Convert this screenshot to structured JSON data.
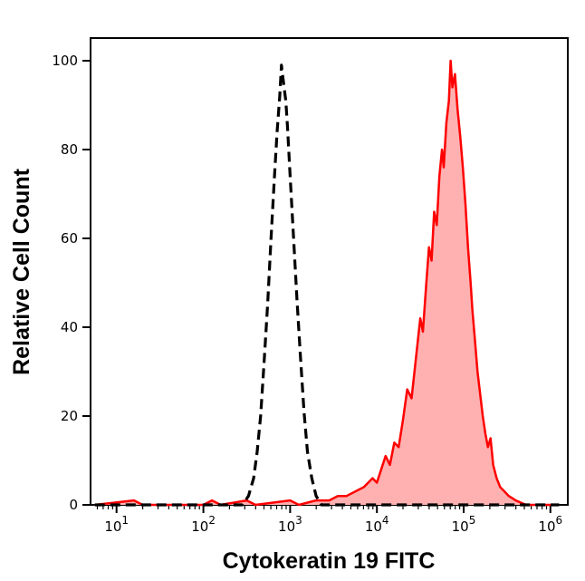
{
  "figure": {
    "background": "#ffffff",
    "frame_color": "#000000"
  },
  "chart_data": {
    "type": "area",
    "subtype": "flow-cytometry-histogram-overlay",
    "title": "",
    "xlabel": "Cytokeratin 19 FITC",
    "ylabel": "Relative Cell Count",
    "x_scale": "log10",
    "x_range": [
      10,
      1000000
    ],
    "ylim": [
      0,
      100
    ],
    "grid": false,
    "legend": "none",
    "x_ticks": [
      {
        "base": "10",
        "exp": "1"
      },
      {
        "base": "10",
        "exp": "2"
      },
      {
        "base": "10",
        "exp": "3"
      },
      {
        "base": "10",
        "exp": "4"
      },
      {
        "base": "10",
        "exp": "5"
      },
      {
        "base": "10",
        "exp": "6"
      }
    ],
    "y_tick_labels": [
      "0",
      "20",
      "40",
      "60",
      "80",
      "100"
    ],
    "y_tick_values": [
      0,
      20,
      40,
      60,
      80,
      100
    ],
    "series": [
      {
        "name": "red-filled-curve",
        "line_style": "solid",
        "color": "#ff0000",
        "fill": "#ffb1b1",
        "stroke_width": 2.5,
        "points_logx_y": [
          [
            0.75,
            0
          ],
          [
            1.2,
            1
          ],
          [
            1.3,
            0
          ],
          [
            2.0,
            0
          ],
          [
            2.1,
            1
          ],
          [
            2.2,
            0
          ],
          [
            2.5,
            1
          ],
          [
            2.6,
            0
          ],
          [
            3.0,
            1
          ],
          [
            3.1,
            0
          ],
          [
            3.3,
            1
          ],
          [
            3.45,
            1
          ],
          [
            3.55,
            2
          ],
          [
            3.65,
            2
          ],
          [
            3.75,
            3
          ],
          [
            3.85,
            4
          ],
          [
            3.95,
            6
          ],
          [
            4.0,
            5
          ],
          [
            4.05,
            8
          ],
          [
            4.1,
            11
          ],
          [
            4.15,
            9
          ],
          [
            4.2,
            14
          ],
          [
            4.25,
            13
          ],
          [
            4.3,
            19
          ],
          [
            4.35,
            26
          ],
          [
            4.4,
            24
          ],
          [
            4.45,
            33
          ],
          [
            4.5,
            42
          ],
          [
            4.53,
            39
          ],
          [
            4.57,
            50
          ],
          [
            4.6,
            58
          ],
          [
            4.63,
            55
          ],
          [
            4.66,
            66
          ],
          [
            4.69,
            63
          ],
          [
            4.72,
            74
          ],
          [
            4.75,
            80
          ],
          [
            4.77,
            76
          ],
          [
            4.8,
            86
          ],
          [
            4.83,
            91
          ],
          [
            4.85,
            100
          ],
          [
            4.87,
            94
          ],
          [
            4.9,
            97
          ],
          [
            4.93,
            89
          ],
          [
            4.96,
            83
          ],
          [
            4.99,
            76
          ],
          [
            5.02,
            68
          ],
          [
            5.05,
            58
          ],
          [
            5.08,
            50
          ],
          [
            5.1,
            44
          ],
          [
            5.13,
            37
          ],
          [
            5.16,
            30
          ],
          [
            5.19,
            25
          ],
          [
            5.22,
            20
          ],
          [
            5.25,
            16
          ],
          [
            5.28,
            13
          ],
          [
            5.31,
            15
          ],
          [
            5.34,
            9
          ],
          [
            5.38,
            6
          ],
          [
            5.42,
            4
          ],
          [
            5.47,
            3
          ],
          [
            5.52,
            2
          ],
          [
            5.6,
            1
          ],
          [
            5.72,
            0
          ],
          [
            6.1,
            0
          ]
        ]
      },
      {
        "name": "black-dashed-curve",
        "line_style": "dashed",
        "color": "#000000",
        "fill": "none",
        "stroke_width": 3.2,
        "points_logx_y": [
          [
            0.75,
            0
          ],
          [
            2.45,
            0
          ],
          [
            2.52,
            2
          ],
          [
            2.58,
            6
          ],
          [
            2.62,
            12
          ],
          [
            2.66,
            20
          ],
          [
            2.7,
            32
          ],
          [
            2.74,
            45
          ],
          [
            2.78,
            60
          ],
          [
            2.82,
            74
          ],
          [
            2.85,
            84
          ],
          [
            2.88,
            92
          ],
          [
            2.9,
            99
          ],
          [
            2.93,
            94
          ],
          [
            2.95,
            91
          ],
          [
            2.97,
            85
          ],
          [
            3.0,
            74
          ],
          [
            3.04,
            60
          ],
          [
            3.08,
            46
          ],
          [
            3.12,
            33
          ],
          [
            3.16,
            21
          ],
          [
            3.2,
            12
          ],
          [
            3.25,
            6
          ],
          [
            3.3,
            2
          ],
          [
            3.36,
            0
          ],
          [
            6.1,
            0
          ]
        ]
      }
    ]
  }
}
